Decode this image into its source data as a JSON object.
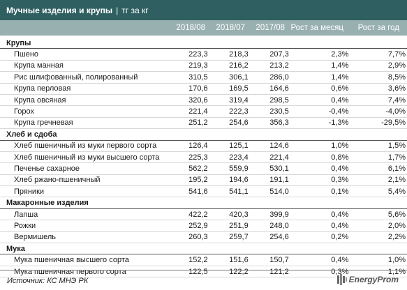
{
  "header": {
    "title": "Мучные изделия и крупы",
    "separator": "|",
    "unit": "тг за кг"
  },
  "columns": [
    "2018/08",
    "2018/07",
    "2017/08",
    "Рост за месяц",
    "Рост за год"
  ],
  "groups": [
    {
      "name": "Крупы",
      "rows": [
        {
          "name": "Пшено",
          "v1": "223,3",
          "v2": "218,3",
          "v3": "207,3",
          "m": "2,3%",
          "y": "7,7%"
        },
        {
          "name": "Крупа манная",
          "v1": "219,3",
          "v2": "216,2",
          "v3": "213,2",
          "m": "1,4%",
          "y": "2,9%"
        },
        {
          "name": "Рис шлифованный, полированный",
          "v1": "310,5",
          "v2": "306,1",
          "v3": "286,0",
          "m": "1,4%",
          "y": "8,5%"
        },
        {
          "name": "Крупа перловая",
          "v1": "170,6",
          "v2": "169,5",
          "v3": "164,6",
          "m": "0,6%",
          "y": "3,6%"
        },
        {
          "name": "Крупа овсяная",
          "v1": "320,6",
          "v2": "319,4",
          "v3": "298,5",
          "m": "0,4%",
          "y": "7,4%"
        },
        {
          "name": "Горох",
          "v1": "221,4",
          "v2": "222,3",
          "v3": "230,5",
          "m": "-0,4%",
          "y": "-4,0%"
        },
        {
          "name": "Крупа гречневая",
          "v1": "251,2",
          "v2": "254,6",
          "v3": "356,3",
          "m": "-1,3%",
          "y": "-29,5%"
        }
      ]
    },
    {
      "name": "Хлеб и сдоба",
      "rows": [
        {
          "name": "Хлеб пшеничный из муки первого сорта",
          "v1": "126,4",
          "v2": "125,1",
          "v3": "124,6",
          "m": "1,0%",
          "y": "1,5%"
        },
        {
          "name": "Хлеб пшеничный из муки высшего сорта",
          "v1": "225,3",
          "v2": "223,4",
          "v3": "221,4",
          "m": "0,8%",
          "y": "1,7%"
        },
        {
          "name": "Печенье сахарное",
          "v1": "562,2",
          "v2": "559,9",
          "v3": "530,1",
          "m": "0,4%",
          "y": "6,1%"
        },
        {
          "name": "Хлеб ржано-пшеничный",
          "v1": "195,2",
          "v2": "194,6",
          "v3": "191,1",
          "m": "0,3%",
          "y": "2,1%"
        },
        {
          "name": "Пряники",
          "v1": "541,6",
          "v2": "541,1",
          "v3": "514,0",
          "m": "0,1%",
          "y": "5,4%"
        }
      ]
    },
    {
      "name": "Макаронные изделия",
      "rows": [
        {
          "name": "Лапша",
          "v1": "422,2",
          "v2": "420,3",
          "v3": "399,9",
          "m": "0,4%",
          "y": "5,6%"
        },
        {
          "name": "Рожки",
          "v1": "252,9",
          "v2": "251,9",
          "v3": "248,0",
          "m": "0,4%",
          "y": "2,0%"
        },
        {
          "name": "Вермишель",
          "v1": "260,3",
          "v2": "259,7",
          "v3": "254,6",
          "m": "0,2%",
          "y": "2,2%"
        }
      ]
    },
    {
      "name": "Мука",
      "rows": [
        {
          "name": "Мука пшеничная высшего сорта",
          "v1": "152,2",
          "v2": "151,6",
          "v3": "150,7",
          "m": "0,4%",
          "y": "1,0%"
        },
        {
          "name": "Мука пшеничная первого сорта",
          "v1": "122,5",
          "v2": "122,2",
          "v3": "121,2",
          "m": "0,3%",
          "y": "1,1%"
        }
      ]
    }
  ],
  "footer": {
    "source": "Источник: КС МНЭ РК",
    "logo_text": "EnergyProm",
    "logo_icon": "energyprom-logo-icon"
  },
  "colors": {
    "title_bg": "#2f5f60",
    "header_bg": "#99b0b0"
  }
}
